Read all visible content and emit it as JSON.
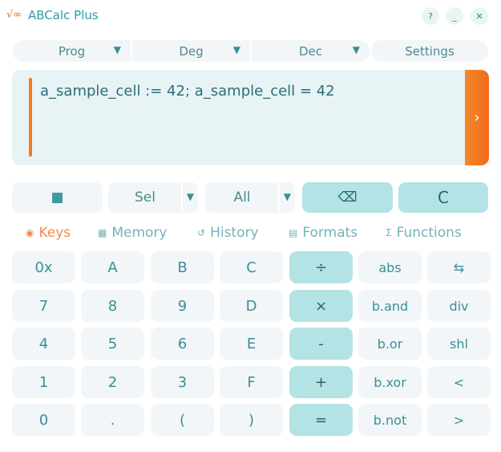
{
  "app": {
    "title": "ABCalc Plus",
    "logo": "√∞",
    "help": "?",
    "minimize": "_",
    "close": "✕"
  },
  "modes": [
    {
      "label": "Prog",
      "dropdown": true
    },
    {
      "label": "Deg",
      "dropdown": true
    },
    {
      "label": "Dec",
      "dropdown": true
    },
    {
      "label": "Settings",
      "dropdown": false
    }
  ],
  "display": {
    "expression": "a_sample_cell := 42; a_sample_cell = 42",
    "go": "›"
  },
  "toolbar": {
    "copy_icon": "■",
    "sel": "Sel",
    "all": "All",
    "backspace": "⌫",
    "clear": "C",
    "arrow": "▼"
  },
  "tabs": [
    {
      "label": "Keys",
      "icon": "◉",
      "active": true
    },
    {
      "label": "Memory",
      "icon": "▦"
    },
    {
      "label": "History",
      "icon": "↺"
    },
    {
      "label": "Formats",
      "icon": "▤"
    },
    {
      "label": "Functions",
      "icon": "Σ"
    }
  ],
  "keys": [
    [
      "0x",
      "A",
      "B",
      "C",
      "÷",
      "abs",
      "⇆"
    ],
    [
      "7",
      "8",
      "9",
      "D",
      "×",
      "b.and",
      "div"
    ],
    [
      "4",
      "5",
      "6",
      "E",
      "-",
      "b.or",
      "shl"
    ],
    [
      "1",
      "2",
      "3",
      "F",
      "+",
      "b.xor",
      "<"
    ],
    [
      "0",
      ".",
      "(",
      ")",
      "=",
      "b.not",
      ">"
    ]
  ],
  "colors": {
    "accent": "#f06a1c",
    "teal": "#b3e3e5",
    "text": "#3a8f98"
  }
}
